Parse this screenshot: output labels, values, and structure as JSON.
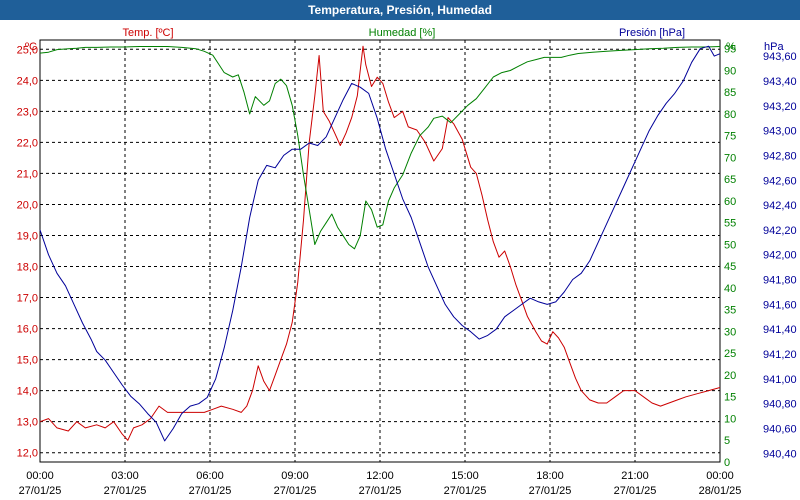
{
  "window": {
    "title": "Temperatura, Presión, Humedad"
  },
  "chart_data": {
    "type": "line",
    "title": "Temperatura, Presión, Humedad",
    "colors": {
      "temp": "#cc0000",
      "hum": "#008000",
      "pres": "#000099",
      "grid": "#000000"
    },
    "headers": {
      "temp_unit": "ºC",
      "temp_label": "Temp. [ºC]",
      "hum_label": "Humedad [%]",
      "hum_unit": "%",
      "pres_label": "Presión [hPa]",
      "pres_unit": "hPa"
    },
    "x_ticks": [
      {
        "time": "00:00",
        "date": "27/01/25"
      },
      {
        "time": "03:00",
        "date": "27/01/25"
      },
      {
        "time": "06:00",
        "date": "27/01/25"
      },
      {
        "time": "09:00",
        "date": "27/01/25"
      },
      {
        "time": "12:00",
        "date": "27/01/25"
      },
      {
        "time": "15:00",
        "date": "27/01/25"
      },
      {
        "time": "18:00",
        "date": "27/01/25"
      },
      {
        "time": "21:00",
        "date": "27/01/25"
      },
      {
        "time": "00:00",
        "date": "28/01/25"
      }
    ],
    "xlim": [
      0,
      24
    ],
    "temp_axis": {
      "ylim": [
        11.7,
        25.3
      ],
      "ticks": [
        "12,0",
        "13,0",
        "14,0",
        "15,0",
        "16,0",
        "17,0",
        "18,0",
        "19,0",
        "20,0",
        "21,0",
        "22,0",
        "23,0",
        "24,0",
        "25,0"
      ]
    },
    "hum_axis": {
      "ylim": [
        0,
        97
      ],
      "ticks": [
        "0",
        "5",
        "10",
        "15",
        "20",
        "25",
        "30",
        "35",
        "40",
        "45",
        "50",
        "55",
        "60",
        "65",
        "70",
        "75",
        "80",
        "85",
        "90",
        "95"
      ]
    },
    "pres_axis": {
      "ylim": [
        940.33,
        943.73
      ],
      "ticks": [
        "940,40",
        "940,60",
        "940,80",
        "941,00",
        "941,20",
        "941,40",
        "941,60",
        "941,80",
        "942,00",
        "942,20",
        "942,40",
        "942,60",
        "942,80",
        "943,00",
        "943,20",
        "943,40",
        "943,60"
      ]
    },
    "series": [
      {
        "name": "Temperatura",
        "key": "temp",
        "points": [
          [
            0,
            13.0
          ],
          [
            0.3,
            13.1
          ],
          [
            0.6,
            12.8
          ],
          [
            1,
            12.7
          ],
          [
            1.3,
            13.0
          ],
          [
            1.6,
            12.8
          ],
          [
            2,
            12.9
          ],
          [
            2.3,
            12.8
          ],
          [
            2.6,
            13.0
          ],
          [
            2.9,
            12.6
          ],
          [
            3.1,
            12.4
          ],
          [
            3.3,
            12.8
          ],
          [
            3.6,
            12.9
          ],
          [
            3.9,
            13.1
          ],
          [
            4.2,
            13.5
          ],
          [
            4.5,
            13.3
          ],
          [
            4.8,
            13.3
          ],
          [
            5.1,
            13.3
          ],
          [
            5.5,
            13.3
          ],
          [
            5.8,
            13.3
          ],
          [
            6.1,
            13.4
          ],
          [
            6.4,
            13.5
          ],
          [
            6.8,
            13.4
          ],
          [
            7.1,
            13.3
          ],
          [
            7.3,
            13.5
          ],
          [
            7.5,
            14.0
          ],
          [
            7.7,
            14.8
          ],
          [
            7.9,
            14.3
          ],
          [
            8.1,
            14.0
          ],
          [
            8.3,
            14.5
          ],
          [
            8.5,
            15.0
          ],
          [
            8.7,
            15.5
          ],
          [
            8.9,
            16.2
          ],
          [
            9.1,
            17.5
          ],
          [
            9.3,
            19.5
          ],
          [
            9.5,
            22.0
          ],
          [
            9.7,
            23.5
          ],
          [
            9.85,
            24.8
          ],
          [
            10.0,
            23.0
          ],
          [
            10.2,
            22.7
          ],
          [
            10.4,
            22.3
          ],
          [
            10.6,
            21.9
          ],
          [
            10.8,
            22.3
          ],
          [
            11.0,
            22.8
          ],
          [
            11.2,
            23.5
          ],
          [
            11.4,
            25.1
          ],
          [
            11.5,
            24.5
          ],
          [
            11.7,
            23.8
          ],
          [
            11.9,
            24.1
          ],
          [
            12.1,
            23.9
          ],
          [
            12.3,
            23.3
          ],
          [
            12.5,
            22.8
          ],
          [
            12.8,
            23.0
          ],
          [
            13.0,
            22.5
          ],
          [
            13.3,
            22.4
          ],
          [
            13.6,
            22.0
          ],
          [
            13.9,
            21.4
          ],
          [
            14.2,
            21.8
          ],
          [
            14.4,
            22.8
          ],
          [
            14.6,
            22.6
          ],
          [
            14.9,
            22.1
          ],
          [
            15.2,
            21.2
          ],
          [
            15.4,
            21.0
          ],
          [
            15.6,
            20.3
          ],
          [
            15.8,
            19.5
          ],
          [
            16.0,
            18.8
          ],
          [
            16.2,
            18.3
          ],
          [
            16.4,
            18.5
          ],
          [
            16.6,
            18.0
          ],
          [
            16.8,
            17.4
          ],
          [
            17.0,
            16.9
          ],
          [
            17.2,
            16.4
          ],
          [
            17.5,
            15.9
          ],
          [
            17.7,
            15.6
          ],
          [
            17.9,
            15.5
          ],
          [
            18.1,
            15.9
          ],
          [
            18.3,
            15.7
          ],
          [
            18.5,
            15.4
          ],
          [
            18.7,
            14.9
          ],
          [
            18.9,
            14.4
          ],
          [
            19.1,
            14.0
          ],
          [
            19.4,
            13.7
          ],
          [
            19.7,
            13.6
          ],
          [
            20.0,
            13.6
          ],
          [
            20.3,
            13.8
          ],
          [
            20.6,
            14.0
          ],
          [
            21.0,
            14.0
          ],
          [
            21.3,
            13.8
          ],
          [
            21.6,
            13.6
          ],
          [
            21.9,
            13.5
          ],
          [
            22.2,
            13.6
          ],
          [
            22.5,
            13.7
          ],
          [
            22.8,
            13.8
          ],
          [
            23.2,
            13.9
          ],
          [
            23.6,
            14.0
          ],
          [
            24,
            14.1
          ]
        ]
      },
      {
        "name": "Humedad",
        "key": "hum",
        "points": [
          [
            0,
            94
          ],
          [
            0.3,
            94.2
          ],
          [
            0.6,
            94.8
          ],
          [
            1,
            95
          ],
          [
            1.3,
            95.1
          ],
          [
            1.6,
            95.3
          ],
          [
            2,
            95.3
          ],
          [
            2.5,
            95.4
          ],
          [
            3,
            95.4
          ],
          [
            3.5,
            95.5
          ],
          [
            4,
            95.5
          ],
          [
            4.5,
            95.5
          ],
          [
            5,
            95.3
          ],
          [
            5.5,
            95.0
          ],
          [
            5.8,
            94.4
          ],
          [
            6.1,
            93.5
          ],
          [
            6.3,
            91.5
          ],
          [
            6.5,
            89.5
          ],
          [
            6.8,
            88.5
          ],
          [
            7.0,
            89.0
          ],
          [
            7.2,
            85.0
          ],
          [
            7.4,
            80.0
          ],
          [
            7.6,
            84.0
          ],
          [
            7.9,
            82.0
          ],
          [
            8.1,
            83.0
          ],
          [
            8.3,
            87.0
          ],
          [
            8.5,
            88.0
          ],
          [
            8.7,
            86.5
          ],
          [
            8.9,
            82.0
          ],
          [
            9.1,
            75.0
          ],
          [
            9.3,
            66.0
          ],
          [
            9.5,
            58.0
          ],
          [
            9.7,
            50.0
          ],
          [
            9.9,
            53.0
          ],
          [
            10.1,
            55.0
          ],
          [
            10.3,
            57.0
          ],
          [
            10.5,
            54.0
          ],
          [
            10.7,
            52.0
          ],
          [
            10.9,
            50.0
          ],
          [
            11.1,
            49.0
          ],
          [
            11.3,
            52.0
          ],
          [
            11.5,
            60.0
          ],
          [
            11.7,
            58.0
          ],
          [
            11.9,
            54.0
          ],
          [
            12.1,
            54.5
          ],
          [
            12.3,
            60.0
          ],
          [
            12.5,
            63.0
          ],
          [
            12.8,
            66.0
          ],
          [
            13.1,
            71.0
          ],
          [
            13.4,
            75.0
          ],
          [
            13.7,
            77.0
          ],
          [
            13.9,
            79.0
          ],
          [
            14.2,
            79.5
          ],
          [
            14.5,
            78.0
          ],
          [
            14.8,
            80.0
          ],
          [
            15.1,
            82.0
          ],
          [
            15.4,
            83.5
          ],
          [
            15.7,
            86.0
          ],
          [
            16.0,
            88.5
          ],
          [
            16.3,
            89.5
          ],
          [
            16.6,
            90.0
          ],
          [
            16.9,
            91.0
          ],
          [
            17.2,
            92.0
          ],
          [
            17.5,
            92.5
          ],
          [
            17.8,
            93.0
          ],
          [
            18.1,
            93.0
          ],
          [
            18.4,
            93.0
          ],
          [
            18.7,
            93.5
          ],
          [
            19.0,
            93.9
          ],
          [
            19.5,
            94.2
          ],
          [
            20.0,
            94.4
          ],
          [
            20.5,
            94.6
          ],
          [
            21.0,
            94.8
          ],
          [
            21.5,
            95.0
          ],
          [
            22.0,
            95.1
          ],
          [
            22.5,
            95.3
          ],
          [
            23.0,
            95.4
          ],
          [
            23.5,
            95.4
          ],
          [
            24,
            95.5
          ]
        ]
      },
      {
        "name": "Presión",
        "key": "pres",
        "points": [
          [
            0,
            942.2
          ],
          [
            0.3,
            942.0
          ],
          [
            0.6,
            941.85
          ],
          [
            0.9,
            941.75
          ],
          [
            1.2,
            941.6
          ],
          [
            1.5,
            941.45
          ],
          [
            1.8,
            941.32
          ],
          [
            2.0,
            941.22
          ],
          [
            2.3,
            941.15
          ],
          [
            2.6,
            941.05
          ],
          [
            2.9,
            940.95
          ],
          [
            3.2,
            940.86
          ],
          [
            3.5,
            940.8
          ],
          [
            3.8,
            940.72
          ],
          [
            4.1,
            940.65
          ],
          [
            4.4,
            940.5
          ],
          [
            4.7,
            940.6
          ],
          [
            5.0,
            940.72
          ],
          [
            5.3,
            940.78
          ],
          [
            5.6,
            940.8
          ],
          [
            5.9,
            940.85
          ],
          [
            6.2,
            941.0
          ],
          [
            6.5,
            941.25
          ],
          [
            6.8,
            941.55
          ],
          [
            7.1,
            941.9
          ],
          [
            7.4,
            942.3
          ],
          [
            7.7,
            942.6
          ],
          [
            8.0,
            942.72
          ],
          [
            8.3,
            942.7
          ],
          [
            8.6,
            942.8
          ],
          [
            8.9,
            942.85
          ],
          [
            9.2,
            942.85
          ],
          [
            9.5,
            942.9
          ],
          [
            9.8,
            942.88
          ],
          [
            10.1,
            942.95
          ],
          [
            10.4,
            943.1
          ],
          [
            10.7,
            943.25
          ],
          [
            11.0,
            943.38
          ],
          [
            11.3,
            943.35
          ],
          [
            11.6,
            943.3
          ],
          [
            11.9,
            943.1
          ],
          [
            12.2,
            942.85
          ],
          [
            12.5,
            942.65
          ],
          [
            12.8,
            942.45
          ],
          [
            13.1,
            942.3
          ],
          [
            13.4,
            942.1
          ],
          [
            13.7,
            941.9
          ],
          [
            14.0,
            941.75
          ],
          [
            14.3,
            941.6
          ],
          [
            14.6,
            941.5
          ],
          [
            14.9,
            941.43
          ],
          [
            15.2,
            941.38
          ],
          [
            15.5,
            941.32
          ],
          [
            15.8,
            941.35
          ],
          [
            16.1,
            941.4
          ],
          [
            16.4,
            941.5
          ],
          [
            16.7,
            941.55
          ],
          [
            17.0,
            941.6
          ],
          [
            17.3,
            941.65
          ],
          [
            17.6,
            941.62
          ],
          [
            17.9,
            941.6
          ],
          [
            18.2,
            941.62
          ],
          [
            18.5,
            941.7
          ],
          [
            18.8,
            941.8
          ],
          [
            19.1,
            941.85
          ],
          [
            19.4,
            941.95
          ],
          [
            19.7,
            942.1
          ],
          [
            20.0,
            942.25
          ],
          [
            20.3,
            942.4
          ],
          [
            20.6,
            942.55
          ],
          [
            20.9,
            942.7
          ],
          [
            21.2,
            942.85
          ],
          [
            21.5,
            943.0
          ],
          [
            21.8,
            943.12
          ],
          [
            22.1,
            943.22
          ],
          [
            22.4,
            943.3
          ],
          [
            22.7,
            943.4
          ],
          [
            23.0,
            943.55
          ],
          [
            23.3,
            943.66
          ],
          [
            23.6,
            943.68
          ],
          [
            23.8,
            943.6
          ],
          [
            24,
            943.62
          ]
        ]
      }
    ]
  }
}
